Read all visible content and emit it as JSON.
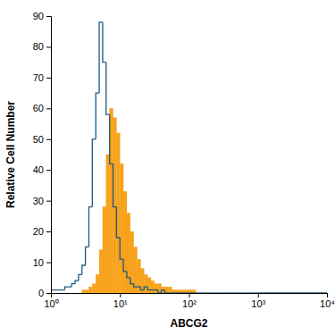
{
  "chart_data": {
    "type": "histogram",
    "x_label": "ABCG2",
    "y_label": "Relative Cell Number",
    "bins": [
      1,
      1.122,
      1.259,
      1.413,
      1.585,
      1.778,
      1.995,
      2.239,
      2.512,
      2.818,
      3.162,
      3.548,
      3.981,
      4.467,
      5.012,
      5.623,
      6.31,
      7.079,
      7.943,
      8.913,
      10,
      11.22,
      12.59,
      14.13,
      15.85,
      17.78,
      19.95,
      22.39,
      25.12,
      28.18,
      31.62,
      35.48,
      39.81,
      44.67,
      50.12,
      56.23,
      63.1,
      70.79,
      79.43,
      89.13,
      100,
      112.2,
      125.9,
      141.3,
      158.5,
      177.8,
      199.5,
      223.9,
      251.2,
      281.8,
      316.2,
      354.8,
      398.1,
      446.7,
      501.2,
      562.3,
      631,
      707.9,
      794.3,
      891.3,
      1000,
      10000
    ],
    "series": [
      {
        "type": "area",
        "color": "#f7a21b",
        "values": [
          0,
          0,
          0,
          0,
          0,
          0,
          0,
          0,
          0,
          1,
          1,
          2,
          3,
          6,
          14,
          28,
          45,
          60,
          57,
          52,
          42,
          33,
          26,
          20,
          15,
          11,
          8,
          6,
          5,
          4,
          3,
          3,
          2,
          2,
          2,
          1,
          1,
          1,
          1,
          1,
          1,
          1,
          0,
          0,
          0,
          0,
          0,
          0,
          0,
          0,
          0,
          0,
          0,
          0,
          0,
          0,
          0,
          0,
          0,
          0,
          0
        ]
      },
      {
        "type": "step",
        "color": "#1b5a86",
        "values": [
          1,
          1,
          1,
          1,
          2,
          2,
          3,
          4,
          6,
          9,
          15,
          28,
          50,
          65,
          88,
          75,
          58,
          42,
          28,
          18,
          11,
          7,
          5,
          3,
          2,
          2,
          1,
          2,
          1,
          1,
          1,
          0,
          1,
          0,
          0,
          0,
          0,
          0,
          0,
          0,
          0,
          0,
          0,
          0,
          0,
          0,
          0,
          0,
          0,
          0,
          0,
          0,
          0,
          0,
          0,
          0,
          0,
          0,
          0,
          0,
          0
        ]
      }
    ],
    "xlim": [
      1,
      10000
    ],
    "ylim": [
      0,
      90
    ],
    "xticks": [
      {
        "value": 1,
        "label": "10⁰"
      },
      {
        "value": 10,
        "label": "10¹"
      },
      {
        "value": 100,
        "label": "10²"
      },
      {
        "value": 1000,
        "label": "10³"
      },
      {
        "value": 10000,
        "label": "10⁴"
      }
    ],
    "yticks": [
      0,
      10,
      20,
      30,
      40,
      50,
      60,
      70,
      80,
      90
    ],
    "log": "x"
  }
}
